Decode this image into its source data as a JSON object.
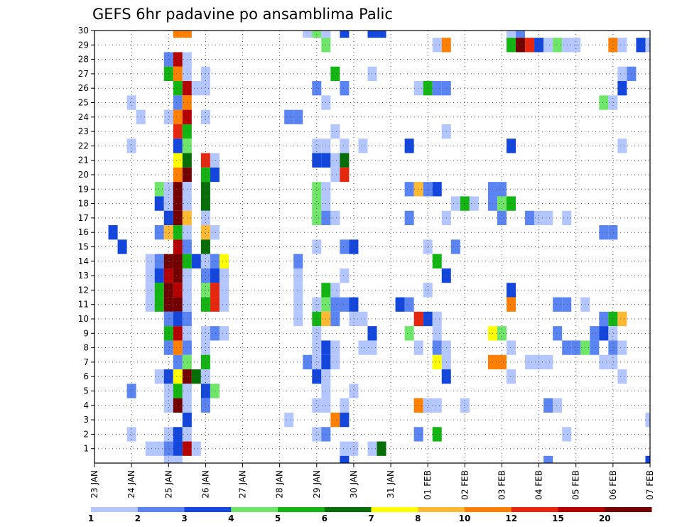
{
  "chart_data": {
    "type": "heatmap",
    "title": "GEFS 6hr padavine po ansamblima Palic",
    "xlabel": "",
    "ylabel": "",
    "x_ticks": [
      "23 JAN",
      "24 JAN",
      "25 JAN",
      "26 JAN",
      "27 JAN",
      "28 JAN",
      "29 JAN",
      "30 JAN",
      "31 JAN",
      "01 FEB",
      "02 FEB",
      "03 FEB",
      "04 FEB",
      "05 FEB",
      "06 FEB",
      "07 FEB"
    ],
    "x_unit": "day index (0 = 23 JAN 00z), 6-hour steps",
    "xlim": [
      0,
      15
    ],
    "y_ticks": [
      1,
      2,
      3,
      4,
      5,
      6,
      7,
      8,
      9,
      10,
      11,
      12,
      13,
      14,
      15,
      16,
      17,
      18,
      19,
      20,
      21,
      22,
      23,
      24,
      25,
      26,
      27,
      28,
      29,
      30
    ],
    "ylim": [
      0,
      30
    ],
    "grid": true,
    "colorbar": {
      "labels": [
        "1",
        "2",
        "3",
        "4",
        "5",
        "6",
        "7",
        "8",
        "10",
        "12",
        "15",
        "20"
      ],
      "colors": [
        "#b4c6ff",
        "#5a84f2",
        "#1346dd",
        "#6fe56a",
        "#12b512",
        "#066e06",
        "#ffff00",
        "#ffba32",
        "#ff7f00",
        "#e6270e",
        "#b40000",
        "#730000"
      ]
    },
    "cells": [
      [
        30,
        2.25,
        8
      ],
      [
        30,
        2.5,
        8
      ],
      [
        30,
        5.75,
        0
      ],
      [
        30,
        6,
        3
      ],
      [
        30,
        6.25,
        0
      ],
      [
        30,
        6.75,
        2
      ],
      [
        30,
        7.5,
        2
      ],
      [
        30,
        7.75,
        2
      ],
      [
        30,
        11.25,
        0
      ],
      [
        30,
        11.5,
        1
      ],
      [
        29,
        6.25,
        3
      ],
      [
        29,
        9.25,
        0
      ],
      [
        29,
        9.5,
        8
      ],
      [
        29,
        11.25,
        4
      ],
      [
        29,
        11.5,
        11
      ],
      [
        29,
        11.75,
        9
      ],
      [
        29,
        12,
        2
      ],
      [
        29,
        12.25,
        0
      ],
      [
        29,
        12.5,
        3
      ],
      [
        29,
        12.75,
        0
      ],
      [
        29,
        13,
        0
      ],
      [
        29,
        14,
        8
      ],
      [
        29,
        14.25,
        0
      ],
      [
        29,
        14.75,
        2
      ],
      [
        29,
        15,
        0
      ],
      [
        28,
        2,
        1
      ],
      [
        28,
        2.25,
        10
      ],
      [
        28,
        2.5,
        0
      ],
      [
        27,
        2,
        4
      ],
      [
        27,
        2.25,
        8
      ],
      [
        27,
        2.5,
        0
      ],
      [
        27,
        3,
        0
      ],
      [
        27,
        6.5,
        4
      ],
      [
        27,
        7.5,
        0
      ],
      [
        27,
        14.25,
        0
      ],
      [
        27,
        14.5,
        1
      ],
      [
        26,
        2.25,
        4
      ],
      [
        26,
        2.5,
        10
      ],
      [
        26,
        2.75,
        0
      ],
      [
        26,
        3,
        0
      ],
      [
        26,
        6,
        1
      ],
      [
        26,
        6.75,
        1
      ],
      [
        26,
        8.75,
        0
      ],
      [
        26,
        9,
        4
      ],
      [
        26,
        9.25,
        1
      ],
      [
        26,
        9.5,
        1
      ],
      [
        26,
        14.25,
        2
      ],
      [
        25,
        1,
        0
      ],
      [
        25,
        2.25,
        1
      ],
      [
        25,
        2.5,
        8
      ],
      [
        25,
        6.25,
        0
      ],
      [
        25,
        13.75,
        3
      ],
      [
        25,
        14,
        0
      ],
      [
        24,
        1.25,
        0
      ],
      [
        24,
        2,
        0
      ],
      [
        24,
        2.25,
        8
      ],
      [
        24,
        2.5,
        10
      ],
      [
        24,
        3,
        0
      ],
      [
        24,
        5.25,
        1
      ],
      [
        24,
        5.5,
        1
      ],
      [
        23,
        2.25,
        9
      ],
      [
        23,
        2.5,
        4
      ],
      [
        23,
        6.5,
        0
      ],
      [
        23,
        9.5,
        0
      ],
      [
        22,
        1,
        0
      ],
      [
        22,
        2.25,
        2
      ],
      [
        22,
        2.5,
        3
      ],
      [
        22,
        6,
        0
      ],
      [
        22,
        6.25,
        0
      ],
      [
        22,
        6.75,
        0
      ],
      [
        22,
        7.25,
        0
      ],
      [
        22,
        8.5,
        2
      ],
      [
        22,
        11.25,
        2
      ],
      [
        22,
        14.25,
        0
      ],
      [
        21,
        2.25,
        6
      ],
      [
        21,
        2.5,
        5
      ],
      [
        21,
        3,
        9
      ],
      [
        21,
        3.25,
        0
      ],
      [
        21,
        6,
        2
      ],
      [
        21,
        6.25,
        2
      ],
      [
        21,
        6.5,
        0
      ],
      [
        21,
        6.75,
        5
      ],
      [
        20,
        2.25,
        8
      ],
      [
        20,
        2.5,
        11
      ],
      [
        20,
        3,
        4
      ],
      [
        20,
        3.25,
        2
      ],
      [
        20,
        6.5,
        0
      ],
      [
        20,
        6.75,
        9
      ],
      [
        19,
        1.75,
        3
      ],
      [
        19,
        2,
        0
      ],
      [
        19,
        2.25,
        11
      ],
      [
        19,
        2.5,
        0
      ],
      [
        19,
        3,
        5
      ],
      [
        19,
        6,
        3
      ],
      [
        19,
        6.25,
        0
      ],
      [
        19,
        8.5,
        1
      ],
      [
        19,
        8.75,
        7
      ],
      [
        19,
        9,
        1
      ],
      [
        19,
        9.25,
        2
      ],
      [
        19,
        10.75,
        1
      ],
      [
        19,
        11,
        1
      ],
      [
        18,
        1.75,
        2
      ],
      [
        18,
        2,
        0
      ],
      [
        18,
        2.25,
        11
      ],
      [
        18,
        2.5,
        0
      ],
      [
        18,
        3,
        5
      ],
      [
        18,
        6,
        3
      ],
      [
        18,
        6.25,
        0
      ],
      [
        18,
        9.75,
        0
      ],
      [
        18,
        10,
        4
      ],
      [
        18,
        10.25,
        0
      ],
      [
        18,
        10.75,
        1
      ],
      [
        18,
        11,
        3
      ],
      [
        18,
        11.25,
        4
      ],
      [
        17,
        2,
        2
      ],
      [
        17,
        2.25,
        11
      ],
      [
        17,
        2.5,
        7
      ],
      [
        17,
        3,
        0
      ],
      [
        17,
        6,
        3
      ],
      [
        17,
        6.25,
        1
      ],
      [
        17,
        6.5,
        0
      ],
      [
        17,
        8.5,
        1
      ],
      [
        17,
        9.5,
        0
      ],
      [
        17,
        11,
        1
      ],
      [
        17,
        11.75,
        1
      ],
      [
        17,
        12,
        0
      ],
      [
        17,
        12.25,
        0
      ],
      [
        17,
        12.75,
        0
      ],
      [
        16,
        0.5,
        2
      ],
      [
        16,
        1.75,
        1
      ],
      [
        16,
        2,
        7
      ],
      [
        16,
        2.25,
        4
      ],
      [
        16,
        2.5,
        0
      ],
      [
        16,
        3,
        7
      ],
      [
        16,
        3.25,
        0
      ],
      [
        16,
        13.75,
        1
      ],
      [
        16,
        14,
        1
      ],
      [
        15,
        0.75,
        2
      ],
      [
        15,
        2.25,
        10
      ],
      [
        15,
        2.5,
        1
      ],
      [
        15,
        3,
        5
      ],
      [
        15,
        6,
        0
      ],
      [
        15,
        6.75,
        1
      ],
      [
        15,
        7,
        2
      ],
      [
        15,
        9,
        0
      ],
      [
        15,
        9.75,
        1
      ],
      [
        14,
        1.5,
        0
      ],
      [
        14,
        1.75,
        1
      ],
      [
        14,
        2,
        11
      ],
      [
        14,
        2.25,
        11
      ],
      [
        14,
        2.5,
        4
      ],
      [
        14,
        2.75,
        2
      ],
      [
        14,
        3,
        0
      ],
      [
        14,
        3.25,
        1
      ],
      [
        14,
        3.5,
        6
      ],
      [
        14,
        5.5,
        1
      ],
      [
        14,
        9.25,
        4
      ],
      [
        13,
        1.5,
        0
      ],
      [
        13,
        1.75,
        2
      ],
      [
        13,
        2,
        10
      ],
      [
        13,
        2.25,
        11
      ],
      [
        13,
        2.5,
        0
      ],
      [
        13,
        3,
        1
      ],
      [
        13,
        3.25,
        2
      ],
      [
        13,
        3.5,
        0
      ],
      [
        13,
        5.5,
        0
      ],
      [
        13,
        6.75,
        0
      ],
      [
        13,
        9.5,
        2
      ],
      [
        12,
        1.5,
        0
      ],
      [
        12,
        1.75,
        4
      ],
      [
        12,
        2,
        11
      ],
      [
        12,
        2.25,
        10
      ],
      [
        12,
        2.5,
        0
      ],
      [
        12,
        3,
        3
      ],
      [
        12,
        3.25,
        9
      ],
      [
        12,
        3.5,
        0
      ],
      [
        12,
        5.5,
        0
      ],
      [
        12,
        6.25,
        4
      ],
      [
        12,
        6.5,
        0
      ],
      [
        12,
        9,
        0
      ],
      [
        12,
        11.25,
        2
      ],
      [
        11,
        1.5,
        0
      ],
      [
        11,
        1.75,
        4
      ],
      [
        11,
        2,
        11
      ],
      [
        11,
        2.25,
        11
      ],
      [
        11,
        2.5,
        0
      ],
      [
        11,
        3,
        4
      ],
      [
        11,
        3.25,
        9
      ],
      [
        11,
        3.5,
        0
      ],
      [
        11,
        5.5,
        0
      ],
      [
        11,
        6,
        0
      ],
      [
        11,
        6.25,
        3
      ],
      [
        11,
        6.5,
        1
      ],
      [
        11,
        6.75,
        1
      ],
      [
        11,
        7,
        2
      ],
      [
        11,
        8.25,
        2
      ],
      [
        11,
        8.5,
        1
      ],
      [
        11,
        11.25,
        8
      ],
      [
        11,
        12.5,
        1
      ],
      [
        11,
        12.75,
        1
      ],
      [
        11,
        13.25,
        0
      ],
      [
        10,
        2,
        1
      ],
      [
        10,
        2.25,
        2
      ],
      [
        10,
        2.5,
        1
      ],
      [
        10,
        5.5,
        0
      ],
      [
        10,
        6,
        4
      ],
      [
        10,
        6.25,
        7
      ],
      [
        10,
        6.5,
        1
      ],
      [
        10,
        7,
        0
      ],
      [
        10,
        7.25,
        0
      ],
      [
        10,
        8.75,
        9
      ],
      [
        10,
        9,
        2
      ],
      [
        10,
        9.25,
        0
      ],
      [
        10,
        13.75,
        1
      ],
      [
        10,
        14,
        4
      ],
      [
        10,
        14.25,
        7
      ],
      [
        9,
        2,
        4
      ],
      [
        9,
        2.25,
        10
      ],
      [
        9,
        2.5,
        0
      ],
      [
        9,
        3,
        0
      ],
      [
        9,
        3.25,
        1
      ],
      [
        9,
        3.5,
        0
      ],
      [
        9,
        6,
        0
      ],
      [
        9,
        7.5,
        2
      ],
      [
        9,
        8.5,
        3
      ],
      [
        9,
        9.25,
        0
      ],
      [
        9,
        10.75,
        6
      ],
      [
        9,
        11,
        3
      ],
      [
        9,
        12.5,
        1
      ],
      [
        9,
        13.5,
        1
      ],
      [
        9,
        13.75,
        2
      ],
      [
        9,
        14,
        0
      ],
      [
        8,
        2,
        1
      ],
      [
        8,
        2.25,
        8
      ],
      [
        8,
        2.5,
        1
      ],
      [
        8,
        3,
        0
      ],
      [
        8,
        6,
        0
      ],
      [
        8,
        6.25,
        2
      ],
      [
        8,
        6.5,
        0
      ],
      [
        8,
        7.25,
        0
      ],
      [
        8,
        7.5,
        0
      ],
      [
        8,
        8.75,
        0
      ],
      [
        8,
        9.25,
        1
      ],
      [
        8,
        9.5,
        0
      ],
      [
        8,
        11.25,
        0
      ],
      [
        8,
        12.75,
        1
      ],
      [
        8,
        13,
        1
      ],
      [
        8,
        13.25,
        3
      ],
      [
        8,
        13.5,
        1
      ],
      [
        8,
        14,
        1
      ],
      [
        8,
        14.25,
        0
      ],
      [
        7,
        2.25,
        1
      ],
      [
        7,
        2.5,
        3
      ],
      [
        7,
        3,
        4
      ],
      [
        7,
        5.75,
        1
      ],
      [
        7,
        6,
        0
      ],
      [
        7,
        6.25,
        2
      ],
      [
        7,
        6.5,
        0
      ],
      [
        7,
        9.25,
        6
      ],
      [
        7,
        9.5,
        0
      ],
      [
        7,
        10.75,
        8
      ],
      [
        7,
        11,
        8
      ],
      [
        7,
        11.75,
        0
      ],
      [
        7,
        12,
        0
      ],
      [
        7,
        12.25,
        0
      ],
      [
        7,
        13.75,
        0
      ],
      [
        7,
        14,
        0
      ],
      [
        6,
        1.75,
        0
      ],
      [
        6,
        2,
        2
      ],
      [
        6,
        2.25,
        6
      ],
      [
        6,
        2.5,
        11
      ],
      [
        6,
        2.75,
        5
      ],
      [
        6,
        3,
        0
      ],
      [
        6,
        6,
        2
      ],
      [
        6,
        6.25,
        0
      ],
      [
        6,
        9.5,
        2
      ],
      [
        6,
        11.25,
        0
      ],
      [
        6,
        14.25,
        0
      ],
      [
        5,
        1,
        1
      ],
      [
        5,
        2,
        0
      ],
      [
        5,
        2.25,
        4
      ],
      [
        5,
        2.5,
        0
      ],
      [
        5,
        3,
        2
      ],
      [
        5,
        3.25,
        3
      ],
      [
        5,
        6.25,
        0
      ],
      [
        5,
        7,
        0
      ],
      [
        4,
        2,
        0
      ],
      [
        4,
        2.25,
        11
      ],
      [
        4,
        2.5,
        0
      ],
      [
        4,
        3,
        1
      ],
      [
        4,
        6,
        0
      ],
      [
        4,
        6.25,
        0
      ],
      [
        4,
        6.75,
        0
      ],
      [
        4,
        8.75,
        8
      ],
      [
        4,
        9,
        0
      ],
      [
        4,
        9.25,
        0
      ],
      [
        4,
        10,
        0
      ],
      [
        4,
        12.25,
        1
      ],
      [
        4,
        12.5,
        0
      ],
      [
        3,
        2.5,
        2
      ],
      [
        3,
        5.25,
        0
      ],
      [
        3,
        6.5,
        8
      ],
      [
        3,
        6.75,
        2
      ],
      [
        3,
        15,
        0
      ],
      [
        2,
        1,
        0
      ],
      [
        2,
        2,
        0
      ],
      [
        2,
        2.25,
        2
      ],
      [
        2,
        2.5,
        0
      ],
      [
        2,
        6,
        0
      ],
      [
        2,
        6.25,
        1
      ],
      [
        2,
        8.75,
        1
      ],
      [
        2,
        9.25,
        4
      ],
      [
        2,
        12.75,
        0
      ],
      [
        1,
        1.5,
        0
      ],
      [
        1,
        1.75,
        0
      ],
      [
        1,
        2,
        1
      ],
      [
        1,
        2.25,
        2
      ],
      [
        1,
        2.5,
        10
      ],
      [
        1,
        2.75,
        0
      ],
      [
        1,
        6.75,
        0
      ],
      [
        1,
        7,
        0
      ],
      [
        1,
        7.5,
        0
      ],
      [
        1,
        7.75,
        5
      ],
      [
        0,
        2,
        0
      ],
      [
        0,
        2.25,
        0
      ],
      [
        0,
        6.75,
        2
      ],
      [
        0,
        12.25,
        1
      ],
      [
        0,
        15,
        2
      ]
    ]
  }
}
